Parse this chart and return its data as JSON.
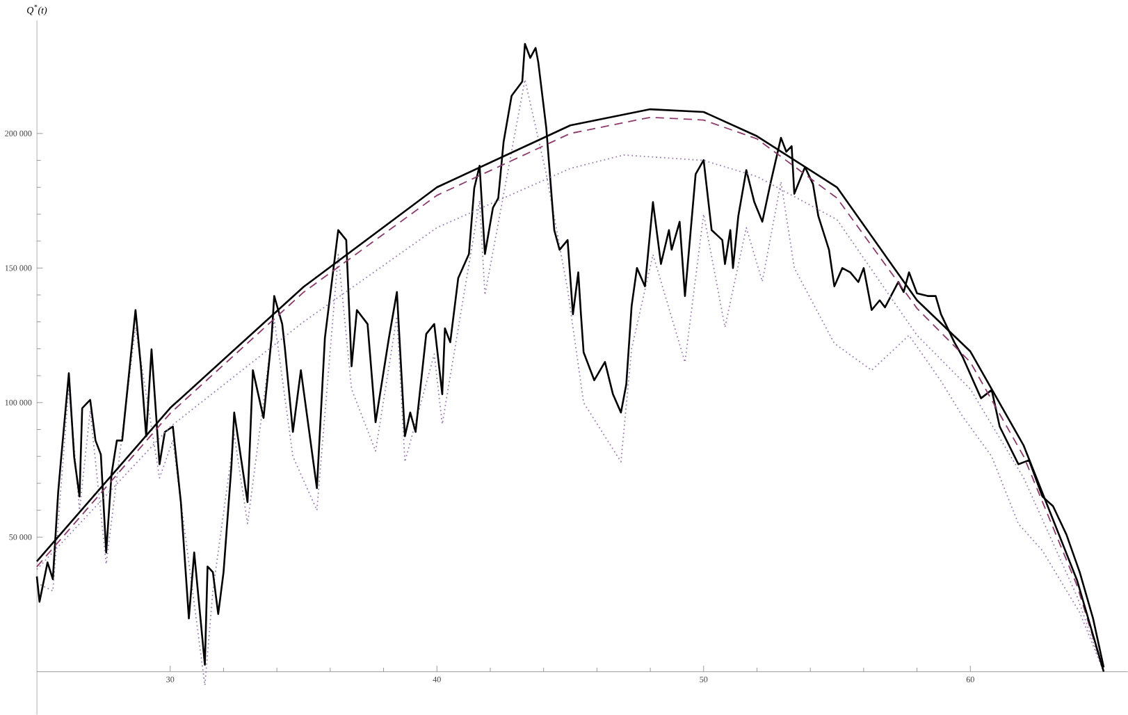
{
  "chart_data": {
    "type": "line",
    "ylabel": "Q$^{*}$(t)",
    "xlim": [
      25,
      65.9
    ],
    "ylim": [
      -16000,
      242000
    ],
    "xticks": [
      30,
      40,
      50,
      60
    ],
    "yticks": [
      {
        "value": 50000,
        "label": "50 000"
      },
      {
        "value": 100000,
        "label": "100 000"
      },
      {
        "value": 150000,
        "label": "150 000"
      },
      {
        "value": 200000,
        "label": "200 000"
      }
    ],
    "marker": "none",
    "series": [
      {
        "color": "#9b7fb0",
        "line_style": "dotted",
        "x": [
          25.0,
          25.6,
          26.2,
          26.6,
          27.0,
          27.6,
          28.7,
          29.6,
          30.1,
          31.3,
          31.6,
          32.4,
          32.9,
          33.9,
          34.6,
          35.5,
          36.3,
          36.8,
          37.7,
          38.5,
          38.8,
          39.9,
          40.2,
          41.6,
          41.8,
          43.3,
          44.1,
          44.9,
          45.5,
          46.9,
          47.3,
          48.1,
          49.3,
          50.0,
          50.8,
          51.6,
          52.2,
          52.9,
          53.4,
          54.9,
          56.3,
          57.7,
          58.9,
          59.7,
          60.8,
          61.8,
          62.7,
          64.1,
          65.0
        ],
        "values": [
          33000,
          30000,
          106000,
          60000,
          97000,
          40000,
          128000,
          72000,
          86000,
          -5000,
          30000,
          88000,
          55000,
          131000,
          80000,
          60000,
          155000,
          105000,
          82000,
          132000,
          78000,
          118000,
          92000,
          175000,
          140000,
          220000,
          185000,
          142000,
          100000,
          78000,
          120000,
          155000,
          115000,
          170000,
          128000,
          165000,
          145000,
          182000,
          150000,
          122000,
          112000,
          125000,
          108000,
          95000,
          80000,
          55000,
          45000,
          22000,
          0
        ]
      },
      {
        "color": "#000000",
        "line_style": "solid",
        "x": [
          25.0,
          25.1,
          25.4,
          25.6,
          25.8,
          25.9,
          26.2,
          26.4,
          26.6,
          26.7,
          27.0,
          27.2,
          27.4,
          27.6,
          27.8,
          28.0,
          28.2,
          28.7,
          28.9,
          29.1,
          29.3,
          29.6,
          29.8,
          30.1,
          30.4,
          30.7,
          30.9,
          31.3,
          31.4,
          31.6,
          31.8,
          32.0,
          32.3,
          32.4,
          32.9,
          33.1,
          33.5,
          33.8,
          33.9,
          34.2,
          34.3,
          34.6,
          34.9,
          35.5,
          35.8,
          36.3,
          36.6,
          36.8,
          37.0,
          37.4,
          37.7,
          38.2,
          38.5,
          38.8,
          39.0,
          39.2,
          39.6,
          39.9,
          40.2,
          40.3,
          40.5,
          40.8,
          41.2,
          41.4,
          41.6,
          41.8,
          42.1,
          42.3,
          42.5,
          42.8,
          43.2,
          43.3,
          43.5,
          43.7,
          43.8,
          44.1,
          44.4,
          44.6,
          44.9,
          45.1,
          45.3,
          45.4,
          45.5,
          45.9,
          46.3,
          46.6,
          46.9,
          47.1,
          47.3,
          47.5,
          47.8,
          48.1,
          48.4,
          48.7,
          48.8,
          49.1,
          49.3,
          49.7,
          50.0,
          50.3,
          50.7,
          50.8,
          51.0,
          51.1,
          51.3,
          51.6,
          51.9,
          52.2,
          52.5,
          52.9,
          53.1,
          53.3,
          53.4,
          53.8,
          54.1,
          54.3,
          54.7,
          54.9,
          55.2,
          55.5,
          55.8,
          56.0,
          56.3,
          56.6,
          56.8,
          57.3,
          57.5,
          57.7,
          58.0,
          58.4,
          58.7,
          58.9,
          59.4,
          59.7,
          60.4,
          60.8,
          61.1,
          61.8,
          62.2,
          62.7,
          63.1,
          63.6,
          64.1,
          64.6,
          65.0
        ],
        "values": [
          35400,
          26000,
          40600,
          34400,
          66700,
          78100,
          110900,
          79700,
          65100,
          97900,
          101000,
          85900,
          80700,
          44300,
          73400,
          85900,
          85900,
          134400,
          113500,
          87500,
          119800,
          77100,
          89100,
          91100,
          63000,
          19800,
          44300,
          2600,
          39100,
          37000,
          21400,
          37000,
          77100,
          96300,
          63000,
          112000,
          94300,
          124000,
          139600,
          129200,
          120300,
          89100,
          112000,
          68200,
          124000,
          164100,
          160400,
          113500,
          134400,
          129200,
          92700,
          124000,
          141100,
          87500,
          96300,
          89100,
          125500,
          129200,
          103100,
          127600,
          122400,
          146300,
          155200,
          179700,
          188000,
          155200,
          172400,
          176000,
          196900,
          214000,
          219300,
          233300,
          228100,
          231800,
          226500,
          202100,
          164100,
          156800,
          160400,
          132800,
          148400,
          132800,
          118700,
          108300,
          115100,
          103100,
          96300,
          106800,
          135900,
          150000,
          143200,
          174500,
          151500,
          164100,
          156800,
          167200,
          139600,
          184900,
          190100,
          164100,
          160400,
          151500,
          164100,
          150000,
          169300,
          186400,
          174500,
          167200,
          181200,
          198400,
          193200,
          195300,
          177600,
          187500,
          181200,
          169300,
          156800,
          143200,
          150000,
          148400,
          144800,
          150000,
          134400,
          138000,
          135400,
          144800,
          141100,
          148400,
          140600,
          139600,
          139600,
          132800,
          122400,
          117200,
          101600,
          104700,
          91100,
          77100,
          78600,
          65100,
          61500,
          51000,
          37000,
          19800,
          1600
        ]
      },
      {
        "color": "#9b7fb0",
        "line_style": "dotted",
        "x": [
          25,
          30,
          35,
          40,
          45,
          47,
          50,
          52,
          55,
          58,
          60,
          62,
          64,
          65
        ],
        "values": [
          38000,
          91000,
          130000,
          165000,
          187000,
          192000,
          190000,
          184000,
          168000,
          125000,
          105000,
          72000,
          28000,
          0
        ]
      },
      {
        "color": "#8b3a6b",
        "line_style": "dashed",
        "x": [
          25,
          30,
          35,
          40,
          45,
          48,
          50,
          52,
          55,
          58,
          60,
          62,
          64,
          65
        ],
        "values": [
          39000,
          96000,
          141000,
          177000,
          200000,
          206000,
          205000,
          198000,
          176000,
          135000,
          115000,
          80000,
          32000,
          0
        ]
      },
      {
        "color": "#000000",
        "line_style": "solid",
        "x": [
          25,
          30,
          35,
          40,
          45,
          48,
          50,
          52,
          55,
          58,
          60,
          62,
          64,
          65
        ],
        "values": [
          41000,
          98000,
          143000,
          180000,
          203000,
          209000,
          208000,
          199000,
          180000,
          138000,
          119000,
          84000,
          34000,
          0
        ]
      }
    ]
  }
}
